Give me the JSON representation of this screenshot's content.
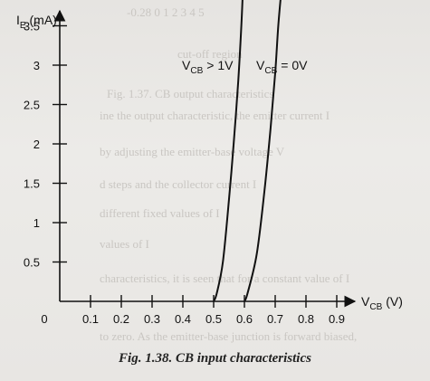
{
  "caption": "Fig. 1.38. CB input characteristics",
  "chart_data": {
    "type": "line",
    "title": "",
    "xlabel": {
      "main": "V",
      "sub": "CB",
      "unit": " (V)"
    },
    "ylabel": {
      "main": "I",
      "sub": "E",
      "unit": " (mA)"
    },
    "origin_label": "0",
    "xlim": [
      0,
      1.0
    ],
    "ylim": [
      0,
      4.0
    ],
    "grid": false,
    "x_ticks": [
      0.1,
      0.2,
      0.3,
      0.4,
      0.5,
      0.6,
      0.7,
      0.8,
      0.9
    ],
    "x_tick_labels": [
      "0.1",
      "0.2",
      "0.3",
      "0.4",
      "0.5",
      "0.6",
      "0.7",
      "0.8",
      "0.9"
    ],
    "y_ticks": [
      0.5,
      1,
      1.5,
      2,
      2.5,
      3,
      3.5
    ],
    "y_tick_labels": [
      "0.5",
      "1",
      "1.5",
      "2",
      "2.5",
      "3",
      "3.5"
    ],
    "series": [
      {
        "name": "",
        "label": {
          "main": "V",
          "sub": "CB",
          "rest": " > 1V"
        },
        "x": [
          0.5,
          0.51,
          0.53,
          0.55,
          0.565,
          0.58,
          0.59,
          0.595
        ],
        "y": [
          0.0,
          0.1,
          0.5,
          1.3,
          2.0,
          2.8,
          3.5,
          3.95
        ]
      },
      {
        "name": "",
        "label": {
          "main": "V",
          "sub": "CB",
          "rest": " = 0V"
        },
        "x": [
          0.6,
          0.61,
          0.64,
          0.665,
          0.685,
          0.7,
          0.71,
          0.72
        ],
        "y": [
          0.0,
          0.1,
          0.6,
          1.4,
          2.2,
          2.9,
          3.5,
          3.95
        ]
      }
    ]
  },
  "ghost_text": [
    "-0.28  0      1      2      3      4      5",
    "cut-off region",
    "Fig. 1.37. CB output characteristics",
    "ine the output characteristic, the emitter current I",
    "by adjusting the emitter-base voltage V",
    "d steps and the collector current I",
    "different fixed values of I",
    "values of I",
    "characteristics, it is seen that for a constant value of I",
    "to zero. As the emitter-base junction is forward biased,"
  ]
}
